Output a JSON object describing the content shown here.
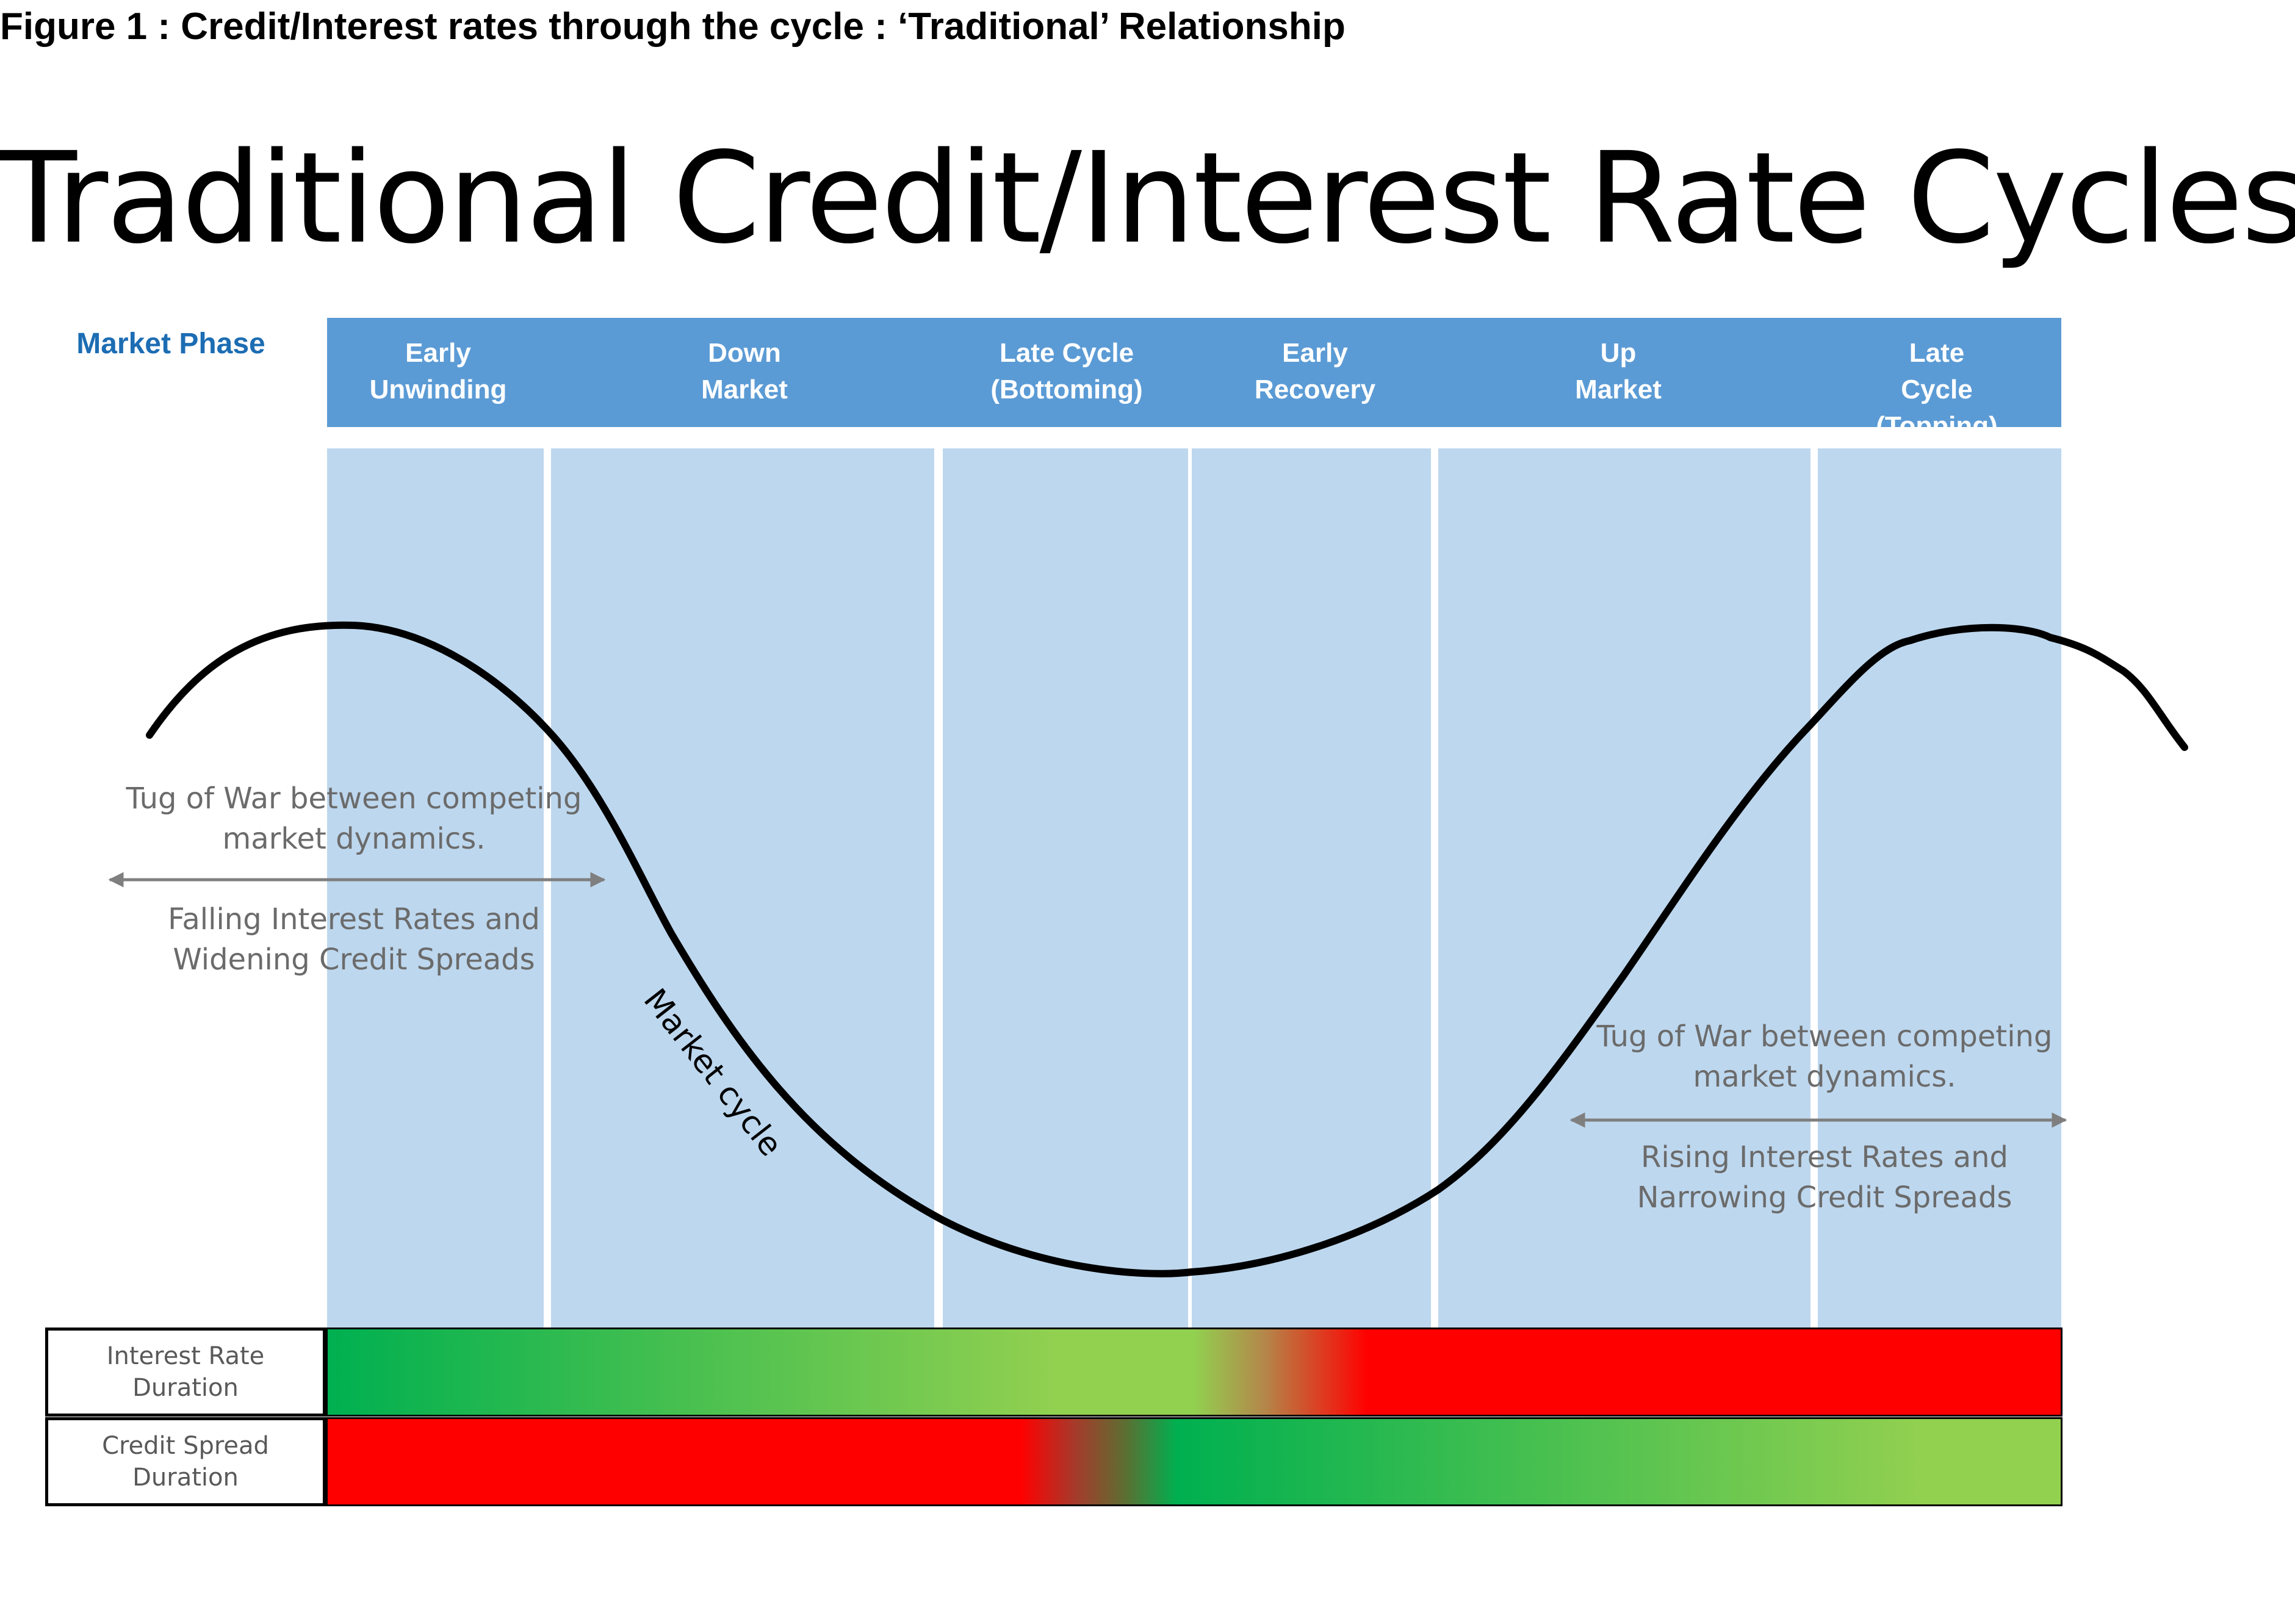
{
  "figure_caption": "Figure 1 : Credit/Interest rates through the cycle : ‘Traditional’ Relationship",
  "title": "Traditional Credit/Interest Rate Cycles",
  "market_phase_label": "Market Phase",
  "phases": [
    {
      "label": "Early\nUnwinding"
    },
    {
      "label": "Down\nMarket"
    },
    {
      "label": "Late Cycle\n(Bottoming)"
    },
    {
      "label": "Early\nRecovery"
    },
    {
      "label": "Up\nMarket"
    },
    {
      "label": "Late Cycle\n(Topping)"
    }
  ],
  "curve_label": "Market cycle",
  "annotations": {
    "left_top": "Tug of War between competing\nmarket dynamics.",
    "left_bottom": "Falling Interest Rates and\nWidening Credit Spreads",
    "right_top": "Tug of War between competing\nmarket dynamics.",
    "right_bottom": "Rising Interest Rates and\nNarrowing Credit Spreads"
  },
  "rows": {
    "interest_rate": "Interest Rate\nDuration",
    "credit_spread": "Credit Spread\nDuration"
  },
  "colors": {
    "header_blue": "#5b9bd5",
    "column_blue": "#bdd7ee",
    "phase_label_blue": "#1c6db3",
    "green": "#00b050",
    "light_green": "#92d050",
    "red": "#ff0000",
    "annotation_gray": "#6b6b6b"
  }
}
